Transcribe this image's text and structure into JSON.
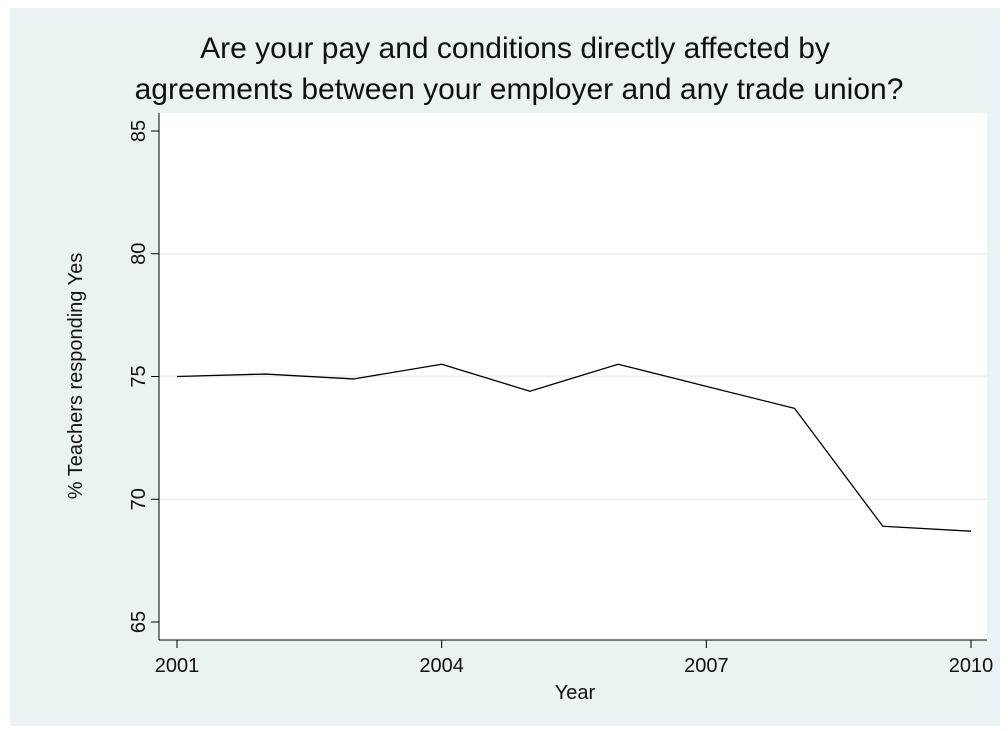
{
  "chart_data": {
    "type": "line",
    "title_lines": [
      "Are your pay and conditions directly affected by",
      "agreements between your employer and any trade union?"
    ],
    "xlabel": "Year",
    "ylabel": "% Teachers responding Yes",
    "x": [
      2001,
      2002,
      2003,
      2004,
      2005,
      2006,
      2007,
      2008,
      2009,
      2010
    ],
    "series": [
      {
        "values": [
          75.0,
          75.1,
          74.9,
          75.5,
          74.4,
          75.5,
          74.6,
          73.7,
          68.9,
          68.7
        ]
      }
    ],
    "xticks": [
      "2001",
      "2004",
      "2007",
      "2010"
    ],
    "yticks": [
      "65",
      "70",
      "75",
      "80",
      "85"
    ],
    "xlim": [
      2001,
      2010
    ],
    "ylim": [
      65,
      85
    ],
    "grid": true,
    "colors": {
      "line": "#000000",
      "grid": "#eaf2f3",
      "background": "#eaf2f3",
      "plot_area": "#ffffff"
    }
  }
}
